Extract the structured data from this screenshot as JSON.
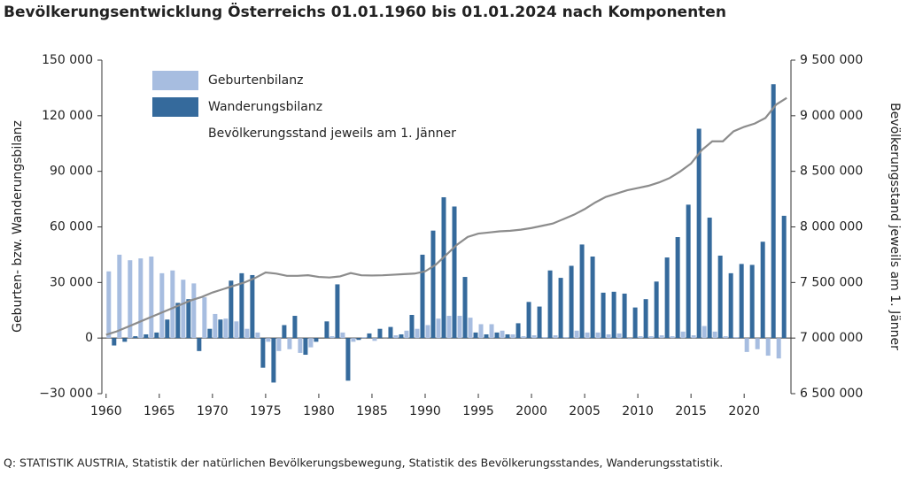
{
  "chart_data": {
    "type": "bar-line",
    "title": "Bevölkerungsentwicklung Österreichs 01.01.1960 bis 01.01.2024 nach Komponenten",
    "y_label": "Geburten- bzw. Wanderungsbilanz",
    "y2_label": "Bevölkerungsstand jeweils am 1. Jänner",
    "source": "Q: STATISTIK AUSTRIA, Statistik der natürlichen Bevölkerungsbewegung, Statistik des Bevölkerungsstandes, Wanderungsstatistik.",
    "x": [
      1960,
      1961,
      1962,
      1963,
      1964,
      1965,
      1966,
      1967,
      1968,
      1969,
      1970,
      1971,
      1972,
      1973,
      1974,
      1975,
      1976,
      1977,
      1978,
      1979,
      1980,
      1981,
      1982,
      1983,
      1984,
      1985,
      1986,
      1987,
      1988,
      1989,
      1990,
      1991,
      1992,
      1993,
      1994,
      1995,
      1996,
      1997,
      1998,
      1999,
      2000,
      2001,
      2002,
      2003,
      2004,
      2005,
      2006,
      2007,
      2008,
      2009,
      2010,
      2011,
      2012,
      2013,
      2014,
      2015,
      2016,
      2017,
      2018,
      2019,
      2020,
      2021,
      2022,
      2023,
      2024
    ],
    "xlim": [
      1959.6,
      2024.4
    ],
    "xticks": [
      1960,
      1965,
      1970,
      1975,
      1980,
      1985,
      1990,
      1995,
      2000,
      2005,
      2010,
      2015,
      2020
    ],
    "ylim": [
      -30000,
      150000
    ],
    "yticks": [
      {
        "value": -30000,
        "label": "−30 000"
      },
      0,
      {
        "value": 30000,
        "label": "30 000"
      },
      {
        "value": 60000,
        "label": "60 000"
      },
      {
        "value": 90000,
        "label": "90 000"
      },
      {
        "value": 120000,
        "label": "120 000"
      },
      {
        "value": 150000,
        "label": "150 000"
      }
    ],
    "y2lim": [
      6500000,
      9500000
    ],
    "y2ticks": [
      {
        "value": 6500000,
        "label": "6 500 000"
      },
      {
        "value": 7000000,
        "label": "7 000 000"
      },
      {
        "value": 7500000,
        "label": "7 500 000"
      },
      {
        "value": 8000000,
        "label": "8 000 000"
      },
      {
        "value": 8500000,
        "label": "8 500 000"
      },
      {
        "value": 9000000,
        "label": "9 000 000"
      },
      {
        "value": 9500000,
        "label": "9 500 000"
      }
    ],
    "series": [
      {
        "name": "Geburtenbilanz",
        "type": "bar",
        "color": "#a7bde0",
        "values": [
          36000,
          45000,
          42000,
          43000,
          44000,
          35000,
          36500,
          31500,
          29500,
          22000,
          13000,
          10500,
          9000,
          5000,
          3000,
          -2000,
          -7000,
          -6000,
          -8000,
          -5000,
          0,
          1000,
          3000,
          -2000,
          500,
          -1500,
          100,
          1500,
          4000,
          5000,
          7000,
          10500,
          12000,
          12000,
          11000,
          7500,
          7500,
          4000,
          2000,
          1000,
          1500,
          500,
          1500,
          500,
          4000,
          3000,
          3000,
          2000,
          2500,
          -500,
          1000,
          1000,
          1500,
          1000,
          3500,
          1500,
          6500,
          3500,
          1000,
          500,
          -7500,
          -6000,
          -9500,
          -11000,
          null
        ]
      },
      {
        "name": "Wanderungsbilanz",
        "type": "bar",
        "color": "#356a9c",
        "values": [
          -4000,
          -2000,
          1000,
          2000,
          3000,
          10000,
          19000,
          21000,
          -7000,
          5000,
          10000,
          31000,
          35000,
          34000,
          -16000,
          -24000,
          7000,
          12000,
          -9000,
          -2000,
          9000,
          29000,
          -23000,
          -1000,
          2500,
          5000,
          6000,
          2000,
          12500,
          45000,
          58000,
          76000,
          71000,
          33000,
          3000,
          2000,
          3000,
          2000,
          8000,
          19500,
          17000,
          36500,
          32500,
          39000,
          50500,
          44000,
          24500,
          25000,
          24000,
          16500,
          21000,
          30500,
          43500,
          54500,
          72000,
          113000,
          65000,
          44500,
          35000,
          40000,
          39500,
          52000,
          137000,
          66000,
          null
        ]
      },
      {
        "name": "Bevölkerungsstand jeweils am 1. Jänner",
        "type": "line",
        "axis": "y2",
        "color": "#8c8c8c",
        "values": [
          7030000,
          7060000,
          7100000,
          7140000,
          7180000,
          7220000,
          7260000,
          7300000,
          7340000,
          7370000,
          7410000,
          7440000,
          7470000,
          7500000,
          7540000,
          7590000,
          7580000,
          7560000,
          7560000,
          7565000,
          7550000,
          7545000,
          7555000,
          7585000,
          7565000,
          7563000,
          7565000,
          7570000,
          7575000,
          7580000,
          7600000,
          7660000,
          7750000,
          7840000,
          7910000,
          7940000,
          7950000,
          7960000,
          7965000,
          7975000,
          7990000,
          8010000,
          8030000,
          8070000,
          8110000,
          8160000,
          8220000,
          8270000,
          8300000,
          8330000,
          8350000,
          8370000,
          8400000,
          8440000,
          8500000,
          8570000,
          8690000,
          8770000,
          8770000,
          8860000,
          8900000,
          8930000,
          8980000,
          9100000,
          9160000
        ]
      }
    ]
  }
}
